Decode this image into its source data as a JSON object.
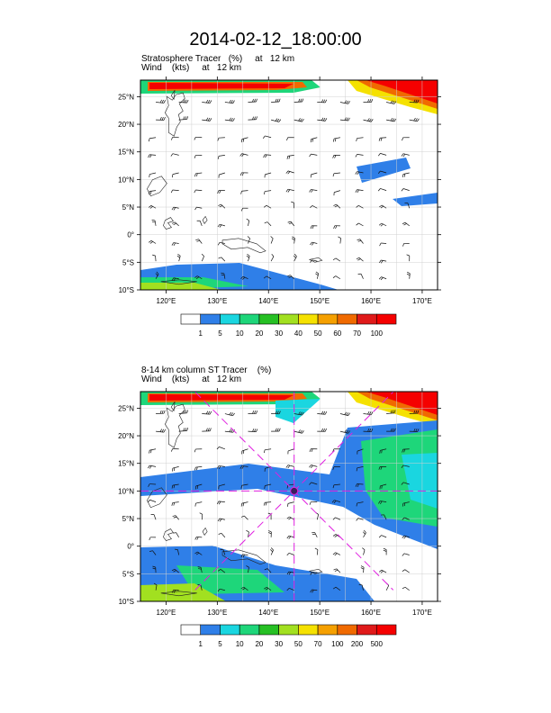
{
  "title": "2014-02-12_18:00:00",
  "chart_data": [
    {
      "type": "heatmap",
      "name": "stratosphere-tracer",
      "subtitle_line1": "Stratosphere Tracer   (%)     at   12 km",
      "subtitle_line2": "Wind    (kts)     at   12 km",
      "lon_range": [
        115,
        173
      ],
      "lat_range": [
        -10,
        28
      ],
      "x_ticks": [
        {
          "v": 120,
          "label": "120°E"
        },
        {
          "v": 130,
          "label": "130°E"
        },
        {
          "v": 140,
          "label": "140°E"
        },
        {
          "v": 150,
          "label": "150°E"
        },
        {
          "v": 160,
          "label": "160°E"
        },
        {
          "v": 170,
          "label": "170°E"
        }
      ],
      "y_ticks": [
        {
          "v": -10,
          "label": "10°S"
        },
        {
          "v": -5,
          "label": "5°S"
        },
        {
          "v": 0,
          "label": "0°"
        },
        {
          "v": 5,
          "label": "5°N"
        },
        {
          "v": 10,
          "label": "10°N"
        },
        {
          "v": 15,
          "label": "15°N"
        },
        {
          "v": 20,
          "label": "20°N"
        },
        {
          "v": 25,
          "label": "25°N"
        }
      ],
      "legend_levels": [
        "1",
        "5",
        "10",
        "20",
        "30",
        "40",
        "50",
        "60",
        "70",
        "100"
      ],
      "legend_colors": [
        "#ffffff",
        "#2f7fe8",
        "#1ad6e0",
        "#1ed67a",
        "#26c024",
        "#a2e020",
        "#f5e100",
        "#f5a000",
        "#f06a00",
        "#e01a1a",
        "#f50000"
      ],
      "grid": true
    },
    {
      "type": "heatmap",
      "name": "column-st-tracer",
      "subtitle_line1": "8-14 km column ST Tracer    (%)",
      "subtitle_line2": "Wind    (kts)     at   12 km",
      "lon_range": [
        115,
        173
      ],
      "lat_range": [
        -10,
        28
      ],
      "x_ticks": [
        {
          "v": 120,
          "label": "120°E"
        },
        {
          "v": 130,
          "label": "130°E"
        },
        {
          "v": 140,
          "label": "140°E"
        },
        {
          "v": 150,
          "label": "150°E"
        },
        {
          "v": 160,
          "label": "160°E"
        },
        {
          "v": 170,
          "label": "170°E"
        }
      ],
      "y_ticks": [
        {
          "v": -10,
          "label": "10°S"
        },
        {
          "v": -5,
          "label": "5°S"
        },
        {
          "v": 0,
          "label": "0°"
        },
        {
          "v": 5,
          "label": "5°N"
        },
        {
          "v": 10,
          "label": "10°N"
        },
        {
          "v": 15,
          "label": "15°N"
        },
        {
          "v": 20,
          "label": "20°N"
        },
        {
          "v": 25,
          "label": "25°N"
        }
      ],
      "legend_levels": [
        "1",
        "5",
        "10",
        "20",
        "30",
        "50",
        "70",
        "100",
        "200",
        "500"
      ],
      "legend_colors": [
        "#ffffff",
        "#2f7fe8",
        "#1ad6e0",
        "#1ed67a",
        "#26c024",
        "#a2e020",
        "#f5e100",
        "#f5a000",
        "#f06a00",
        "#e01a1a",
        "#f50000"
      ],
      "center_marker": {
        "lon": 145,
        "lat": 10
      },
      "grid": true
    }
  ]
}
